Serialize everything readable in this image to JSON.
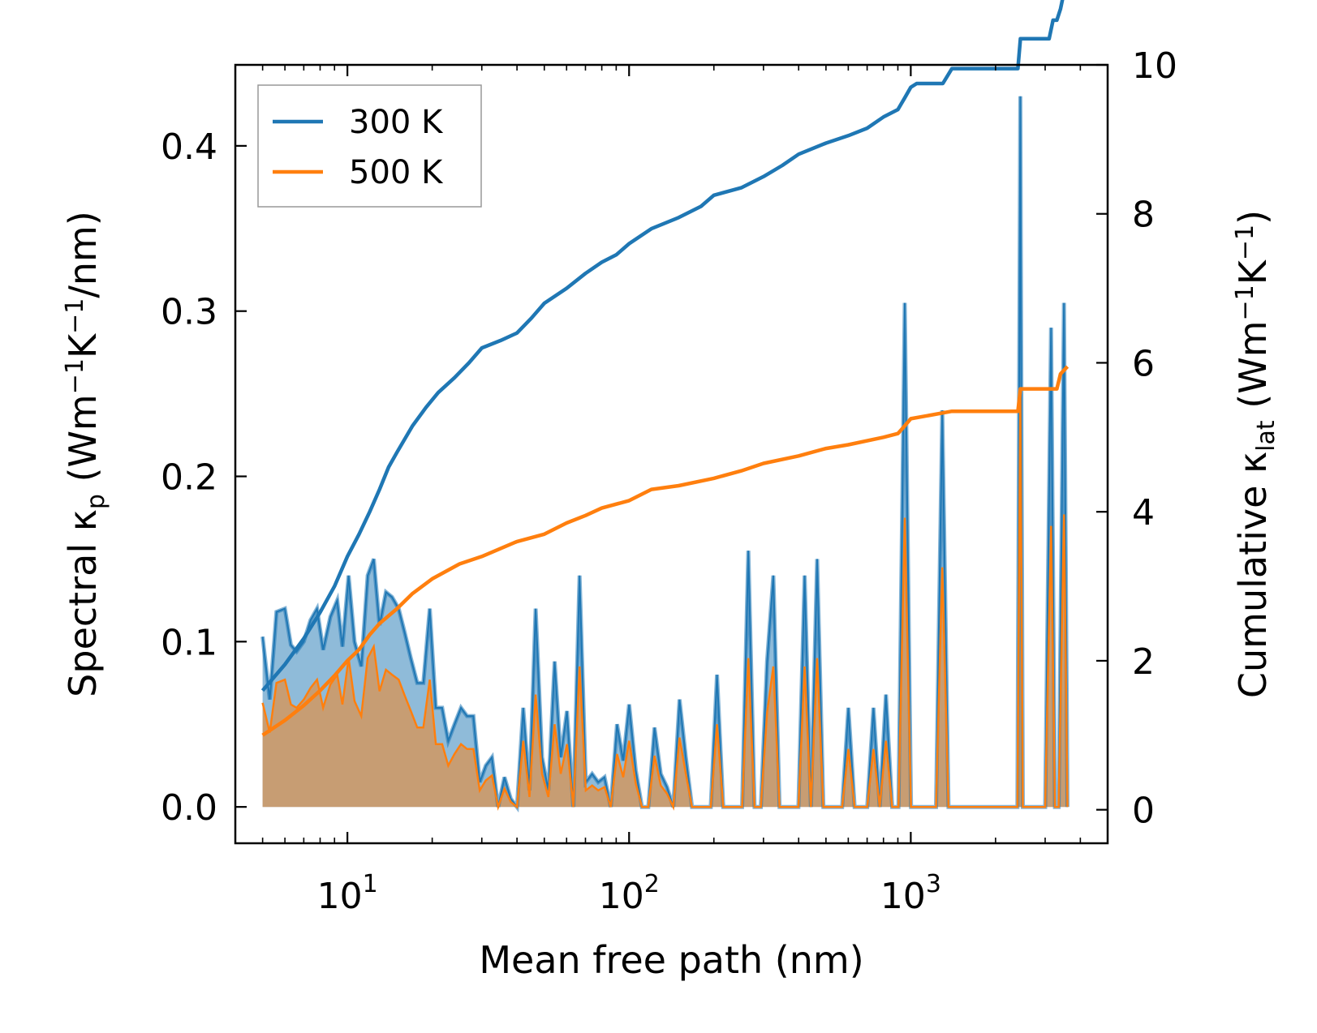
{
  "chart_data": {
    "type": "line",
    "xscale": "log",
    "xlabel": "Mean free path (nm)",
    "ylabel_left": {
      "prefix": "Spectral κ",
      "sub": "p",
      "units": " (Wm",
      "u1": "−1",
      "mid": "K",
      "u2": "−1",
      "end": "/nm)"
    },
    "ylabel_right": {
      "prefix": "Cumulative κ",
      "sub": "lat",
      "units": " (Wm",
      "u1": "−1",
      "mid": "K",
      "u2": "−1",
      "end": ")"
    },
    "xlim": [
      4.0,
      5000
    ],
    "ylim_left": [
      -0.022,
      0.449
    ],
    "ylim_right": [
      -0.45,
      10.0
    ],
    "xticks": [
      {
        "value": 10,
        "base": "10",
        "exp": "1"
      },
      {
        "value": 100,
        "base": "10",
        "exp": "2"
      },
      {
        "value": 1000,
        "base": "10",
        "exp": "3"
      }
    ],
    "yticks_left": [
      {
        "value": 0.0,
        "label": "0.0"
      },
      {
        "value": 0.1,
        "label": "0.1"
      },
      {
        "value": 0.2,
        "label": "0.2"
      },
      {
        "value": 0.3,
        "label": "0.3"
      },
      {
        "value": 0.4,
        "label": "0.4"
      }
    ],
    "yticks_right": [
      {
        "value": 0,
        "label": "0"
      },
      {
        "value": 2,
        "label": "2"
      },
      {
        "value": 4,
        "label": "4"
      },
      {
        "value": 6,
        "label": "6"
      },
      {
        "value": 8,
        "label": "8"
      },
      {
        "value": 10,
        "label": "10"
      }
    ],
    "legend": {
      "position": "top-left",
      "entries": [
        {
          "label": "300 K",
          "color": "#1f77b4"
        },
        {
          "label": "500 K",
          "color": "#ff7f0e"
        }
      ]
    },
    "colors": {
      "c300": "#1f77b4",
      "c500": "#ff7f0e",
      "fill300": "#8fbbd9",
      "fill500": "#c49a6c"
    },
    "spectral": {
      "x": [
        5.0,
        5.3,
        5.6,
        6.0,
        6.3,
        6.6,
        7.0,
        7.4,
        7.8,
        8.2,
        8.7,
        9.2,
        9.6,
        10.1,
        10.6,
        11.2,
        11.8,
        12.4,
        13.0,
        13.7,
        14.4,
        15.2,
        16.0,
        16.8,
        17.7,
        18.6,
        19.6,
        20.6,
        21.7,
        22.8,
        24.0,
        25.3,
        26.6,
        28.0,
        29.5,
        31.0,
        32.6,
        34.3,
        36.1,
        38.0,
        40.0,
        42.1,
        44.3,
        46.6,
        49.1,
        51.7,
        54.4,
        57.2,
        60.2,
        63.4,
        66.7,
        70.2,
        73.9,
        77.7,
        81.8,
        86.1,
        90.6,
        95.3,
        100.0,
        105.6,
        111.1,
        117.0,
        123.1,
        129.6,
        136.4,
        143.5,
        151.0,
        159.0,
        167.3,
        176.1,
        185.3,
        195.0,
        205.2,
        216.0,
        227.3,
        239.3,
        251.8,
        265.0,
        278.9,
        293.6,
        309.0,
        325.2,
        342.2,
        360.2,
        379.1,
        399.0,
        419.9,
        442.0,
        465.2,
        489.6,
        515.3,
        542.3,
        570.8,
        600.7,
        632.2,
        665.4,
        700.3,
        737.1,
        775.8,
        816.5,
        859.4,
        904.5,
        952.0,
        1001.9,
        1054.5,
        1109.8,
        1168.1,
        1229.4,
        1293.9,
        1361.8,
        1433.3,
        1508.5,
        1587.7,
        1671.0,
        1758.7,
        1851.0,
        1948.2,
        2050.4,
        2158.0,
        2271.3,
        2390.5,
        2449.0,
        2500.0,
        2560.0,
        2700.0,
        2850.0,
        3000.0,
        3150.0,
        3250.0,
        3350.0,
        3500.0,
        3600.0
      ],
      "s300": [
        0.103,
        0.065,
        0.118,
        0.12,
        0.098,
        0.094,
        0.1,
        0.113,
        0.12,
        0.095,
        0.115,
        0.125,
        0.097,
        0.14,
        0.1,
        0.085,
        0.14,
        0.15,
        0.11,
        0.13,
        0.127,
        0.12,
        0.105,
        0.09,
        0.075,
        0.075,
        0.12,
        0.06,
        0.06,
        0.04,
        0.05,
        0.06,
        0.055,
        0.055,
        0.015,
        0.025,
        0.03,
        0.0,
        0.018,
        0.005,
        0.0,
        0.06,
        0.01,
        0.12,
        0.03,
        0.01,
        0.088,
        0.03,
        0.058,
        0.0,
        0.14,
        0.015,
        0.02,
        0.015,
        0.018,
        0.0,
        0.05,
        0.028,
        0.062,
        0.022,
        0.0,
        0.0,
        0.048,
        0.02,
        0.012,
        0.0,
        0.065,
        0.03,
        0.0,
        0.0,
        0.0,
        0.0,
        0.08,
        0.0,
        0.0,
        0.0,
        0.0,
        0.155,
        0.0,
        0.0,
        0.088,
        0.14,
        0.0,
        0.0,
        0.0,
        0.0,
        0.14,
        0.0,
        0.15,
        0.0,
        0.0,
        0.0,
        0.0,
        0.06,
        0.0,
        0.0,
        0.0,
        0.06,
        0.0,
        0.068,
        0.0,
        0.0,
        0.305,
        0.0,
        0.0,
        0.0,
        0.0,
        0.0,
        0.24,
        0.0,
        0.0,
        0.0,
        0.0,
        0.0,
        0.0,
        0.0,
        0.0,
        0.0,
        0.0,
        0.0,
        0.0,
        0.43,
        0.0,
        0.0,
        0.0,
        0.0,
        0.0,
        0.29,
        0.0,
        0.0,
        0.305,
        0.0
      ],
      "s500": [
        0.063,
        0.045,
        0.075,
        0.077,
        0.062,
        0.06,
        0.065,
        0.072,
        0.077,
        0.06,
        0.074,
        0.08,
        0.062,
        0.09,
        0.064,
        0.055,
        0.09,
        0.097,
        0.07,
        0.083,
        0.08,
        0.077,
        0.067,
        0.058,
        0.048,
        0.048,
        0.077,
        0.038,
        0.038,
        0.025,
        0.032,
        0.038,
        0.035,
        0.035,
        0.01,
        0.016,
        0.019,
        0.0,
        0.011,
        0.003,
        0.0,
        0.04,
        0.006,
        0.068,
        0.02,
        0.006,
        0.05,
        0.02,
        0.038,
        0.0,
        0.085,
        0.01,
        0.013,
        0.01,
        0.012,
        0.0,
        0.032,
        0.018,
        0.04,
        0.014,
        0.0,
        0.0,
        0.031,
        0.013,
        0.008,
        0.0,
        0.042,
        0.02,
        0.0,
        0.0,
        0.0,
        0.0,
        0.05,
        0.0,
        0.0,
        0.0,
        0.0,
        0.09,
        0.0,
        0.0,
        0.057,
        0.085,
        0.0,
        0.0,
        0.0,
        0.0,
        0.085,
        0.0,
        0.09,
        0.0,
        0.0,
        0.0,
        0.0,
        0.035,
        0.0,
        0.0,
        0.0,
        0.035,
        0.0,
        0.04,
        0.0,
        0.0,
        0.175,
        0.0,
        0.0,
        0.0,
        0.0,
        0.0,
        0.145,
        0.0,
        0.0,
        0.0,
        0.0,
        0.0,
        0.0,
        0.0,
        0.0,
        0.0,
        0.0,
        0.0,
        0.0,
        0.25,
        0.0,
        0.0,
        0.0,
        0.0,
        0.0,
        0.17,
        0.0,
        0.0,
        0.177,
        0.0
      ]
    },
    "cumulative": {
      "x300": [
        5.0,
        6.0,
        7.0,
        8.0,
        9.0,
        10.0,
        11.0,
        12.0,
        13.0,
        14.0,
        15.0,
        17.0,
        19.0,
        21.0,
        24.0,
        27.0,
        30.0,
        35.0,
        40.0,
        45.0,
        50.0,
        60.0,
        70.0,
        80.0,
        90.0,
        100.0,
        120.0,
        150.0,
        180.0,
        200.0,
        250.0,
        300.0,
        350.0,
        400.0,
        500.0,
        600.0,
        700.0,
        800.0,
        900.0,
        950.0,
        1000.0,
        1050.0,
        1300.0,
        1400.0,
        1450.0,
        2400.0,
        2450.0,
        2500.0,
        3100.0,
        3200.0,
        3300.0,
        3400.0,
        3600.0
      ],
      "y300": [
        1.6,
        1.95,
        2.3,
        2.65,
        3.0,
        3.4,
        3.7,
        4.0,
        4.3,
        4.6,
        4.8,
        5.15,
        5.4,
        5.6,
        5.8,
        6.0,
        6.2,
        6.3,
        6.4,
        6.6,
        6.8,
        7.0,
        7.2,
        7.35,
        7.45,
        7.6,
        7.8,
        7.95,
        8.1,
        8.25,
        8.35,
        8.5,
        8.65,
        8.8,
        8.95,
        9.05,
        9.15,
        9.3,
        9.4,
        9.55,
        9.7,
        9.75,
        9.75,
        9.95,
        9.95,
        9.95,
        10.35,
        10.35,
        10.35,
        10.6,
        10.6,
        10.75,
        11.2
      ],
      "x500": [
        5.0,
        6.0,
        7.0,
        8.0,
        9.0,
        10.0,
        11.0,
        12.0,
        13.0,
        15.0,
        17.0,
        20.0,
        25.0,
        30.0,
        40.0,
        50.0,
        60.0,
        70.0,
        80.0,
        100.0,
        120.0,
        150.0,
        200.0,
        250.0,
        300.0,
        400.0,
        500.0,
        600.0,
        800.0,
        900.0,
        950.0,
        1000.0,
        1400.0,
        1450.0,
        2400.0,
        2450.0,
        2500.0,
        3300.0,
        3400.0,
        3600.0
      ],
      "y500": [
        1.0,
        1.2,
        1.4,
        1.6,
        1.8,
        2.0,
        2.15,
        2.35,
        2.5,
        2.7,
        2.9,
        3.1,
        3.3,
        3.4,
        3.6,
        3.7,
        3.85,
        3.95,
        4.05,
        4.15,
        4.3,
        4.35,
        4.45,
        4.55,
        4.65,
        4.75,
        4.85,
        4.9,
        5.0,
        5.05,
        5.15,
        5.25,
        5.35,
        5.35,
        5.35,
        5.65,
        5.65,
        5.65,
        5.85,
        5.95
      ]
    }
  }
}
